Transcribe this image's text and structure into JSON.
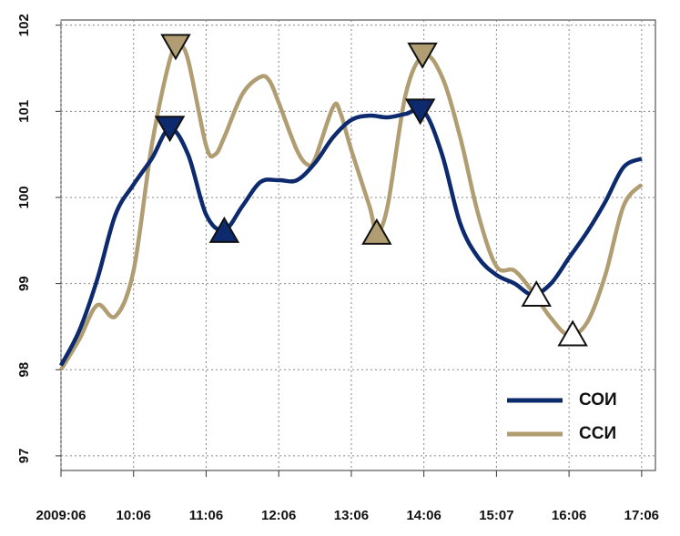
{
  "chart_data": {
    "type": "line",
    "xlim": [
      0,
      8.19
    ],
    "ylim": [
      96.83,
      102.06
    ],
    "xticks": [
      {
        "value": 0,
        "label": "2009:06"
      },
      {
        "value": 1,
        "label": "10:06"
      },
      {
        "value": 2,
        "label": "11:06"
      },
      {
        "value": 3,
        "label": "12:06"
      },
      {
        "value": 4,
        "label": "13:06"
      },
      {
        "value": 5,
        "label": "14:06"
      },
      {
        "value": 6,
        "label": "15:07"
      },
      {
        "value": 7,
        "label": "16:06"
      },
      {
        "value": 8,
        "label": "17:06"
      }
    ],
    "yticks": [
      97,
      98,
      99,
      100,
      101,
      102
    ],
    "grid": true,
    "legend": "bottom-right",
    "series": [
      {
        "name": "СОИ",
        "color": "#0d2a6e",
        "x": [
          0,
          0.25,
          0.5,
          0.75,
          1,
          1.25,
          1.5,
          1.75,
          2,
          2.25,
          2.5,
          2.75,
          3,
          3.25,
          3.5,
          3.75,
          4,
          4.25,
          4.5,
          4.75,
          5,
          5.25,
          5.5,
          5.75,
          6,
          6.25,
          6.5,
          6.75,
          7,
          7.25,
          7.5,
          7.75,
          8
        ],
        "values": [
          98.05,
          98.45,
          99.05,
          99.8,
          100.15,
          100.45,
          100.8,
          100.5,
          99.8,
          99.62,
          99.9,
          100.18,
          100.2,
          100.2,
          100.4,
          100.7,
          100.9,
          100.95,
          100.93,
          100.97,
          101.0,
          100.5,
          99.7,
          99.3,
          99.1,
          99.0,
          98.87,
          99.0,
          99.3,
          99.6,
          99.95,
          100.35,
          100.45
        ],
        "markers": [
          {
            "x": 1.5,
            "y": 100.8,
            "direction": "down",
            "filled": true
          },
          {
            "x": 2.25,
            "y": 99.62,
            "direction": "up",
            "filled": true
          },
          {
            "x": 4.95,
            "y": 101.0,
            "direction": "down",
            "filled": true
          },
          {
            "x": 6.55,
            "y": 98.88,
            "direction": "up",
            "filled": false
          }
        ]
      },
      {
        "name": "ССИ",
        "color": "#b09d72",
        "x": [
          0,
          0.25,
          0.5,
          0.75,
          1,
          1.25,
          1.5,
          1.625,
          1.75,
          2,
          2.125,
          2.25,
          2.5,
          2.75,
          2.875,
          3,
          3.25,
          3.4,
          3.5,
          3.75,
          3.85,
          4,
          4.25,
          4.35,
          4.5,
          4.75,
          5,
          5.25,
          5.5,
          5.75,
          6,
          6.25,
          6.5,
          6.75,
          7,
          7.25,
          7.5,
          7.75,
          8
        ],
        "values": [
          98.0,
          98.35,
          98.75,
          98.62,
          99.15,
          100.6,
          101.6,
          101.75,
          101.6,
          100.6,
          100.5,
          100.7,
          101.2,
          101.4,
          101.35,
          101.1,
          100.55,
          100.38,
          100.45,
          101.05,
          100.98,
          100.55,
          99.9,
          99.6,
          99.9,
          101.2,
          101.65,
          101.4,
          100.7,
          99.8,
          99.2,
          99.15,
          98.9,
          98.6,
          98.4,
          98.55,
          99.1,
          99.9,
          100.15
        ],
        "markers": [
          {
            "x": 1.58,
            "y": 101.75,
            "direction": "down",
            "filled": true
          },
          {
            "x": 4.35,
            "y": 99.6,
            "direction": "up",
            "filled": true
          },
          {
            "x": 4.98,
            "y": 101.65,
            "direction": "down",
            "filled": true
          },
          {
            "x": 7.05,
            "y": 98.42,
            "direction": "up",
            "filled": false
          }
        ]
      }
    ]
  }
}
